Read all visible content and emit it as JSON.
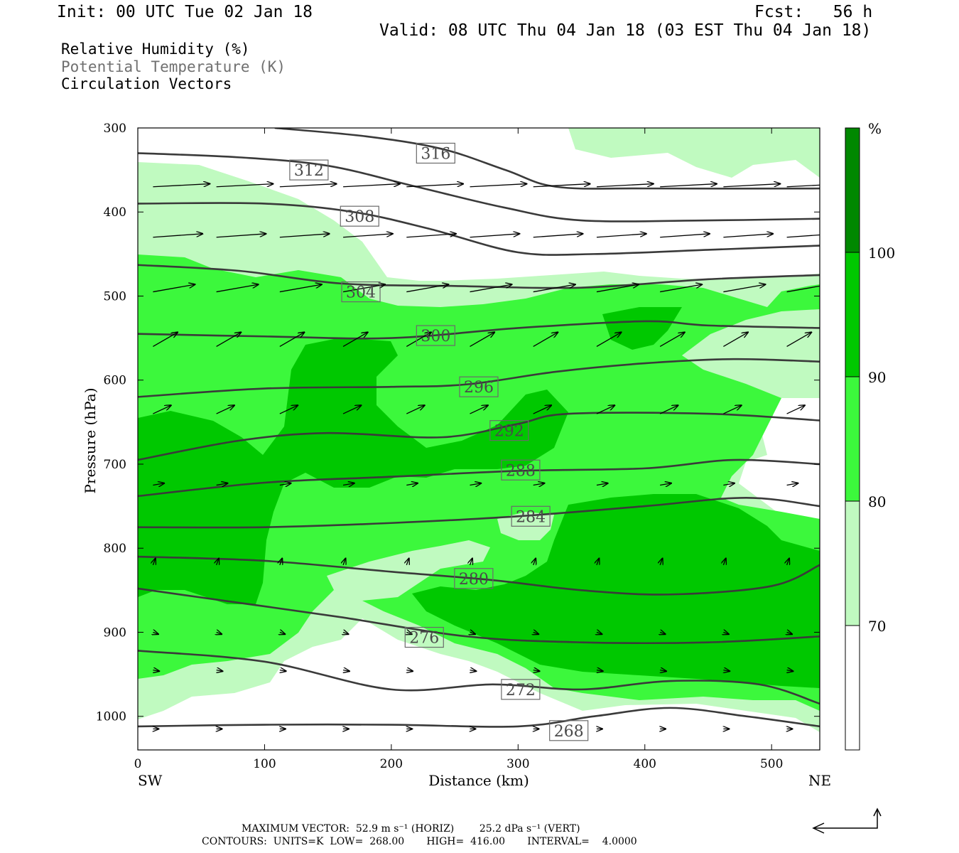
{
  "header": {
    "init": "Init: 00 UTC Tue 02 Jan 18",
    "fcst": "Fcst:   56 h",
    "valid": "Valid: 08 UTC Thu 04 Jan 18 (03 EST Thu 04 Jan 18)"
  },
  "fields": {
    "rh": "Relative Humidity (%)",
    "theta": "Potential Temperature (K)",
    "vectors": "Circulation Vectors"
  },
  "footer": {
    "max_vector": "MAXIMUM VECTOR:  52.9 m s⁻¹ (HORIZ)        25.2 dPa s⁻¹ (VERT)",
    "contours": "CONTOURS:  UNITS=K  LOW=  268.00       HIGH=  416.00       INTERVAL=    4.0000"
  },
  "colors": {
    "rh_70": "#c0fac0",
    "rh_80": "#3cf83c",
    "rh_90": "#00c800",
    "rh_100": "#008800",
    "contour": "#3a3a3a",
    "label_box": "#6a6a6a"
  },
  "chart_data": {
    "type": "cross-section",
    "xlabel": "Distance (km)",
    "ylabel": "Pressure (hPa)",
    "x_ticks": [
      0,
      100,
      200,
      300,
      400,
      500
    ],
    "y_ticks": [
      300,
      400,
      500,
      600,
      700,
      800,
      900,
      1000
    ],
    "xlim": [
      0,
      538
    ],
    "ylim": [
      300,
      1040
    ],
    "y_inverted": true,
    "left_end": "SW",
    "right_end": "NE",
    "colorbar": {
      "unit": "%",
      "levels": [
        "70",
        "80",
        "90",
        "100"
      ]
    },
    "theta_contours": [
      {
        "value": 316,
        "label": "316",
        "label_at": [
          235,
          330
        ],
        "points": [
          [
            108,
            300
          ],
          [
            180,
            310
          ],
          [
            240,
            325
          ],
          [
            290,
            350
          ],
          [
            330,
            370
          ],
          [
            400,
            372
          ],
          [
            538,
            372
          ]
        ]
      },
      {
        "value": 312,
        "label": "312",
        "label_at": [
          135,
          350
        ],
        "points": [
          [
            0,
            330
          ],
          [
            80,
            335
          ],
          [
            150,
            345
          ],
          [
            220,
            370
          ],
          [
            290,
            395
          ],
          [
            350,
            410
          ],
          [
            450,
            410
          ],
          [
            538,
            408
          ]
        ]
      },
      {
        "value": 308,
        "label": "308",
        "label_at": [
          175,
          405
        ],
        "points": [
          [
            0,
            390
          ],
          [
            100,
            390
          ],
          [
            170,
            400
          ],
          [
            230,
            420
          ],
          [
            300,
            448
          ],
          [
            360,
            450
          ],
          [
            450,
            445
          ],
          [
            538,
            440
          ]
        ]
      },
      {
        "value": 304,
        "label": "304",
        "label_at": [
          176,
          495
        ],
        "points": [
          [
            0,
            463
          ],
          [
            80,
            470
          ],
          [
            160,
            485
          ],
          [
            250,
            488
          ],
          [
            350,
            490
          ],
          [
            450,
            480
          ],
          [
            538,
            475
          ]
        ]
      },
      {
        "value": 300,
        "label": "300",
        "label_at": [
          235,
          547
        ],
        "points": [
          [
            0,
            545
          ],
          [
            100,
            548
          ],
          [
            200,
            550
          ],
          [
            300,
            538
          ],
          [
            400,
            530
          ],
          [
            450,
            535
          ],
          [
            538,
            538
          ]
        ]
      },
      {
        "value": 296,
        "label": "296",
        "label_at": [
          269,
          608
        ],
        "points": [
          [
            0,
            620
          ],
          [
            100,
            610
          ],
          [
            200,
            608
          ],
          [
            260,
            605
          ],
          [
            330,
            590
          ],
          [
            400,
            580
          ],
          [
            470,
            575
          ],
          [
            538,
            578
          ]
        ]
      },
      {
        "value": 292,
        "label": "292",
        "label_at": [
          293,
          660
        ],
        "points": [
          [
            0,
            695
          ],
          [
            80,
            672
          ],
          [
            150,
            663
          ],
          [
            240,
            668
          ],
          [
            300,
            652
          ],
          [
            340,
            640
          ],
          [
            450,
            640
          ],
          [
            538,
            648
          ]
        ]
      },
      {
        "value": 288,
        "label": "288",
        "label_at": [
          302,
          707
        ],
        "points": [
          [
            0,
            738
          ],
          [
            100,
            722
          ],
          [
            200,
            715
          ],
          [
            300,
            708
          ],
          [
            400,
            705
          ],
          [
            470,
            695
          ],
          [
            538,
            700
          ]
        ]
      },
      {
        "value": 284,
        "label": "284",
        "label_at": [
          310,
          762
        ],
        "points": [
          [
            0,
            775
          ],
          [
            100,
            775
          ],
          [
            200,
            770
          ],
          [
            300,
            762
          ],
          [
            400,
            750
          ],
          [
            480,
            740
          ],
          [
            538,
            750
          ]
        ]
      },
      {
        "value": 280,
        "label": "280",
        "label_at": [
          265,
          836
        ],
        "points": [
          [
            0,
            810
          ],
          [
            100,
            815
          ],
          [
            200,
            828
          ],
          [
            280,
            838
          ],
          [
            350,
            850
          ],
          [
            420,
            855
          ],
          [
            500,
            845
          ],
          [
            538,
            820
          ]
        ]
      },
      {
        "value": 276,
        "label": "276",
        "label_at": [
          226,
          906
        ],
        "points": [
          [
            0,
            848
          ],
          [
            80,
            865
          ],
          [
            160,
            882
          ],
          [
            260,
            905
          ],
          [
            350,
            912
          ],
          [
            450,
            912
          ],
          [
            538,
            905
          ]
        ]
      },
      {
        "value": 272,
        "label": "272",
        "label_at": [
          302,
          968
        ],
        "points": [
          [
            0,
            922
          ],
          [
            100,
            935
          ],
          [
            200,
            968
          ],
          [
            280,
            962
          ],
          [
            350,
            968
          ],
          [
            420,
            958
          ],
          [
            490,
            962
          ],
          [
            538,
            985
          ]
        ]
      },
      {
        "value": 268,
        "label": "268",
        "label_at": [
          340,
          1017
        ],
        "points": [
          [
            0,
            1012
          ],
          [
            100,
            1010
          ],
          [
            200,
            1010
          ],
          [
            300,
            1012
          ],
          [
            360,
            1000
          ],
          [
            420,
            990
          ],
          [
            480,
            1000
          ],
          [
            538,
            1012
          ]
        ]
      }
    ]
  }
}
